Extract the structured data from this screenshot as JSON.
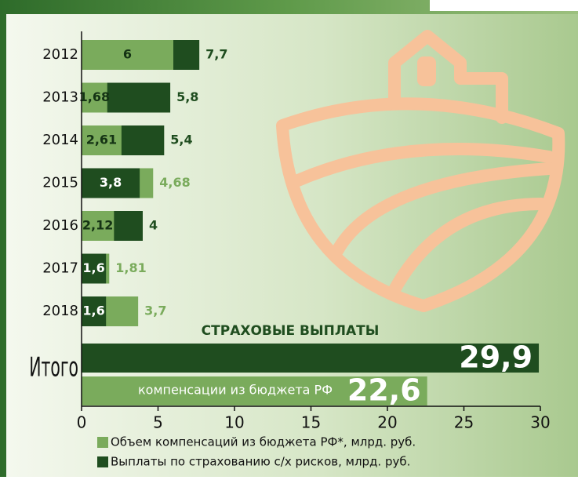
{
  "chart_data": {
    "type": "bar",
    "orientation": "horizontal",
    "categories": [
      "2012",
      "2013",
      "2014",
      "2015",
      "2016",
      "2017",
      "2018",
      "Итого"
    ],
    "series": [
      {
        "name": "Объем компенсаций из бюджета РФ*, млрд. руб.",
        "color": "#7aab5c",
        "values": [
          6,
          1.68,
          2.61,
          4.68,
          2.12,
          1.81,
          3.7,
          22.6
        ],
        "value_labels": [
          "6",
          "1,68",
          "2,61",
          "4,68",
          "2,12",
          "1,81",
          "3,7",
          "22,6"
        ]
      },
      {
        "name": "Выплаты по страхованию с/х рисков, млрд. руб.",
        "color": "#1f4d1f",
        "values": [
          7.7,
          5.8,
          5.4,
          3.8,
          4,
          1.6,
          1.6,
          29.9
        ],
        "value_labels": [
          "7,7",
          "5,8",
          "5,4",
          "3,8",
          "4",
          "1,6",
          "1,6",
          "29,9"
        ]
      }
    ],
    "annotations": [
      "СТРАХОВЫЕ ВЫПЛАТЫ",
      "компенсации из бюджета РФ"
    ],
    "xlim": [
      0,
      30
    ],
    "xticks": [
      0,
      5,
      10,
      15,
      20,
      25,
      30
    ]
  }
}
